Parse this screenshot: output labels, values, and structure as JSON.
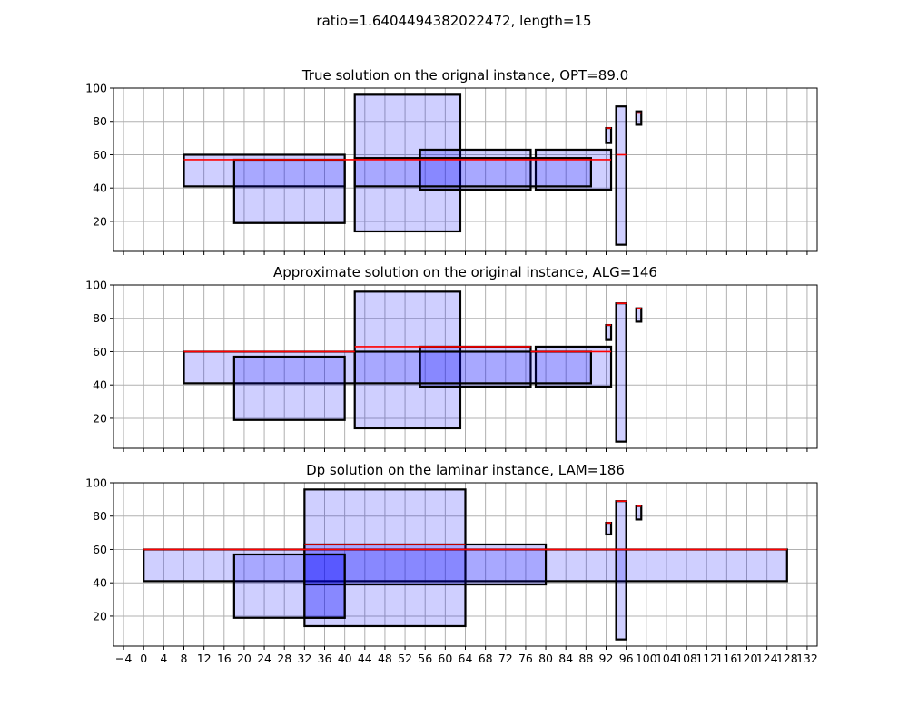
{
  "figure": {
    "suptitle": "ratio=1.6404494382022472, length=15"
  },
  "chart_data": [
    {
      "type": "rectangles",
      "title": "True solution on the orignal instance, OPT=89.0",
      "xlim": [
        -6,
        134
      ],
      "ylim": [
        2,
        100
      ],
      "x_ticks": [
        -4,
        0,
        4,
        8,
        12,
        16,
        20,
        24,
        28,
        32,
        36,
        40,
        44,
        48,
        52,
        56,
        60,
        64,
        68,
        72,
        76,
        80,
        84,
        88,
        92,
        96,
        100,
        104,
        108,
        112,
        116,
        120,
        124,
        128,
        132
      ],
      "y_ticks": [
        20,
        40,
        60,
        80,
        100
      ],
      "grid": true,
      "show_x_tick_labels": false,
      "boxes": [
        {
          "x0": 8,
          "x1": 40,
          "y0": 41,
          "y1": 60
        },
        {
          "x0": 18,
          "x1": 40,
          "y0": 19,
          "y1": 57
        },
        {
          "x0": 42,
          "x1": 63,
          "y0": 14,
          "y1": 96
        },
        {
          "x0": 55,
          "x1": 77,
          "y0": 39,
          "y1": 63
        },
        {
          "x0": 78,
          "x1": 93,
          "y0": 39,
          "y1": 63
        },
        {
          "x0": 42,
          "x1": 89,
          "y0": 41,
          "y1": 58
        },
        {
          "x0": 92,
          "x1": 93,
          "y0": 67,
          "y1": 76
        },
        {
          "x0": 94,
          "x1": 96,
          "y0": 6,
          "y1": 89
        },
        {
          "x0": 98,
          "x1": 99,
          "y0": 78,
          "y1": 86
        }
      ],
      "red_lines": [
        {
          "x0": 8,
          "x1": 93,
          "y": 57
        },
        {
          "x0": 94,
          "x1": 96,
          "y": 60
        },
        {
          "x0": 92,
          "x1": 93,
          "y": 76
        },
        {
          "x0": 98,
          "x1": 99,
          "y": 85
        }
      ]
    },
    {
      "type": "rectangles",
      "title": "Approximate solution on the original instance, ALG=146",
      "xlim": [
        -6,
        134
      ],
      "ylim": [
        2,
        100
      ],
      "x_ticks": [
        -4,
        0,
        4,
        8,
        12,
        16,
        20,
        24,
        28,
        32,
        36,
        40,
        44,
        48,
        52,
        56,
        60,
        64,
        68,
        72,
        76,
        80,
        84,
        88,
        92,
        96,
        100,
        104,
        108,
        112,
        116,
        120,
        124,
        128,
        132
      ],
      "y_ticks": [
        20,
        40,
        60,
        80,
        100
      ],
      "grid": true,
      "show_x_tick_labels": false,
      "boxes": [
        {
          "x0": 8,
          "x1": 42,
          "y0": 41,
          "y1": 60
        },
        {
          "x0": 18,
          "x1": 40,
          "y0": 19,
          "y1": 57
        },
        {
          "x0": 42,
          "x1": 63,
          "y0": 14,
          "y1": 96
        },
        {
          "x0": 55,
          "x1": 77,
          "y0": 39,
          "y1": 63
        },
        {
          "x0": 78,
          "x1": 93,
          "y0": 39,
          "y1": 63
        },
        {
          "x0": 42,
          "x1": 89,
          "y0": 41,
          "y1": 60
        },
        {
          "x0": 92,
          "x1": 93,
          "y0": 67,
          "y1": 76
        },
        {
          "x0": 94,
          "x1": 96,
          "y0": 6,
          "y1": 89
        },
        {
          "x0": 98,
          "x1": 99,
          "y0": 78,
          "y1": 86
        }
      ],
      "red_lines": [
        {
          "x0": 8,
          "x1": 42,
          "y": 60
        },
        {
          "x0": 42,
          "x1": 77,
          "y": 63
        },
        {
          "x0": 77,
          "x1": 93,
          "y": 60
        },
        {
          "x0": 94,
          "x1": 96,
          "y": 89
        },
        {
          "x0": 92,
          "x1": 93,
          "y": 76
        },
        {
          "x0": 98,
          "x1": 99,
          "y": 86
        }
      ]
    },
    {
      "type": "rectangles",
      "title": "Dp solution on the laminar instance, LAM=186",
      "xlim": [
        -6,
        134
      ],
      "ylim": [
        2,
        100
      ],
      "x_ticks": [
        -4,
        0,
        4,
        8,
        12,
        16,
        20,
        24,
        28,
        32,
        36,
        40,
        44,
        48,
        52,
        56,
        60,
        64,
        68,
        72,
        76,
        80,
        84,
        88,
        92,
        96,
        100,
        104,
        108,
        112,
        116,
        120,
        124,
        128,
        132
      ],
      "y_ticks": [
        20,
        40,
        60,
        80,
        100
      ],
      "grid": true,
      "show_x_tick_labels": true,
      "boxes": [
        {
          "x0": 0,
          "x1": 128,
          "y0": 41,
          "y1": 60
        },
        {
          "x0": 18,
          "x1": 40,
          "y0": 19,
          "y1": 57
        },
        {
          "x0": 32,
          "x1": 64,
          "y0": 14,
          "y1": 96
        },
        {
          "x0": 32,
          "x1": 80,
          "y0": 39,
          "y1": 63
        },
        {
          "x0": 32,
          "x1": 40,
          "y0": 19,
          "y1": 57
        },
        {
          "x0": 92,
          "x1": 93,
          "y0": 69,
          "y1": 76
        },
        {
          "x0": 94,
          "x1": 96,
          "y0": 6,
          "y1": 89
        },
        {
          "x0": 98,
          "x1": 99,
          "y0": 78,
          "y1": 86
        }
      ],
      "red_lines": [
        {
          "x0": 0,
          "x1": 128,
          "y": 60
        },
        {
          "x0": 32,
          "x1": 64,
          "y": 63
        },
        {
          "x0": 94,
          "x1": 96,
          "y": 89
        },
        {
          "x0": 92,
          "x1": 93,
          "y": 76
        },
        {
          "x0": 98,
          "x1": 99,
          "y": 86
        }
      ]
    }
  ]
}
